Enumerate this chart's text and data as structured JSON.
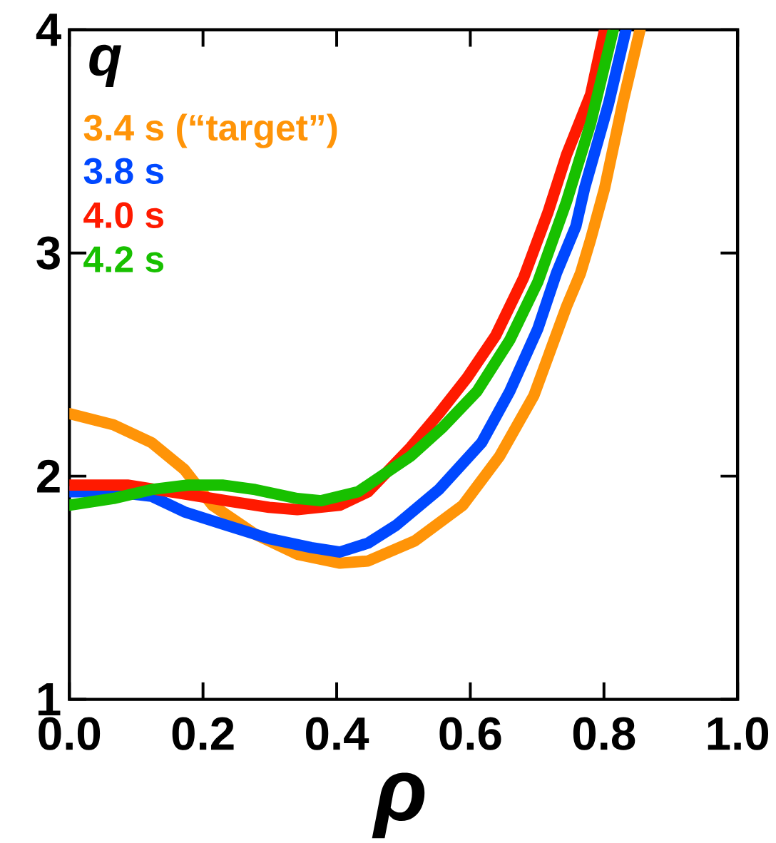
{
  "chart_data": {
    "type": "line",
    "xlabel": "ρ",
    "ylabel": "q",
    "xlim": [
      0,
      1
    ],
    "ylim": [
      1,
      4
    ],
    "xticks": [
      {
        "value": 0,
        "label": "0.0"
      },
      {
        "value": 0.2,
        "label": "0.2"
      },
      {
        "value": 0.4,
        "label": "0.4"
      },
      {
        "value": 0.6,
        "label": "0.6"
      },
      {
        "value": 0.8,
        "label": "0.8"
      },
      {
        "value": 1,
        "label": "1.0"
      }
    ],
    "yticks": [
      1,
      2,
      3,
      4
    ],
    "legend": "top left",
    "grid": false,
    "marker": "none",
    "line_style": "solid",
    "series": [
      {
        "name": "3.4 s (“target”)",
        "color": "#ff9408",
        "x": [
          0,
          0.066,
          0.123,
          0.172,
          0.214,
          0.278,
          0.341,
          0.405,
          0.447,
          0.517,
          0.589,
          0.644,
          0.695,
          0.744,
          0.765,
          0.78,
          0.801,
          0.828,
          0.854
        ],
        "values": [
          2.28,
          2.23,
          2.15,
          2.03,
          1.87,
          1.74,
          1.65,
          1.61,
          1.62,
          1.71,
          1.87,
          2.09,
          2.36,
          2.76,
          2.91,
          3.06,
          3.29,
          3.67,
          4.0
        ]
      },
      {
        "name": "3.8 s",
        "color": "#0048ff",
        "x": [
          0,
          0.066,
          0.123,
          0.172,
          0.235,
          0.299,
          0.362,
          0.405,
          0.447,
          0.489,
          0.553,
          0.617,
          0.659,
          0.701,
          0.729,
          0.758,
          0.771,
          0.807,
          0.833
        ],
        "values": [
          1.93,
          1.93,
          1.91,
          1.84,
          1.78,
          1.72,
          1.68,
          1.66,
          1.7,
          1.78,
          1.94,
          2.15,
          2.38,
          2.66,
          2.91,
          3.12,
          3.29,
          3.67,
          4.0
        ]
      },
      {
        "name": "4.0 s",
        "color": "#ff1a00",
        "x": [
          0,
          0.087,
          0.172,
          0.235,
          0.299,
          0.341,
          0.405,
          0.447,
          0.511,
          0.553,
          0.595,
          0.638,
          0.68,
          0.716,
          0.744,
          0.78,
          0.801
        ],
        "values": [
          1.96,
          1.96,
          1.92,
          1.89,
          1.86,
          1.85,
          1.87,
          1.93,
          2.13,
          2.28,
          2.44,
          2.63,
          2.89,
          3.18,
          3.44,
          3.71,
          4.0
        ]
      },
      {
        "name": "4.2 s",
        "color": "#18c000",
        "x": [
          0,
          0.066,
          0.123,
          0.178,
          0.229,
          0.278,
          0.341,
          0.377,
          0.432,
          0.511,
          0.559,
          0.61,
          0.659,
          0.701,
          0.744,
          0.78,
          0.814
        ],
        "values": [
          1.87,
          1.9,
          1.94,
          1.96,
          1.96,
          1.94,
          1.9,
          1.89,
          1.93,
          2.09,
          2.22,
          2.38,
          2.61,
          2.87,
          3.23,
          3.58,
          4.0
        ]
      }
    ]
  }
}
